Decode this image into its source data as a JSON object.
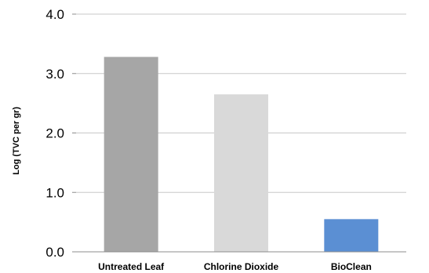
{
  "chart_data": {
    "type": "bar",
    "title": "",
    "xlabel": "",
    "ylabel": "Log (TVC per gr)",
    "ylim": [
      0,
      4
    ],
    "yticks": [
      "0.0",
      "1.0",
      "2.0",
      "3.0",
      "4.0"
    ],
    "grid": true,
    "legend": "none",
    "categories": [
      "Untreated Leaf",
      "Chlorine Dioxide",
      "BioClean"
    ],
    "values": [
      3.28,
      2.65,
      0.55
    ],
    "colors": [
      "#a6a6a6",
      "#d9d9d9",
      "#5b8fd3"
    ]
  }
}
